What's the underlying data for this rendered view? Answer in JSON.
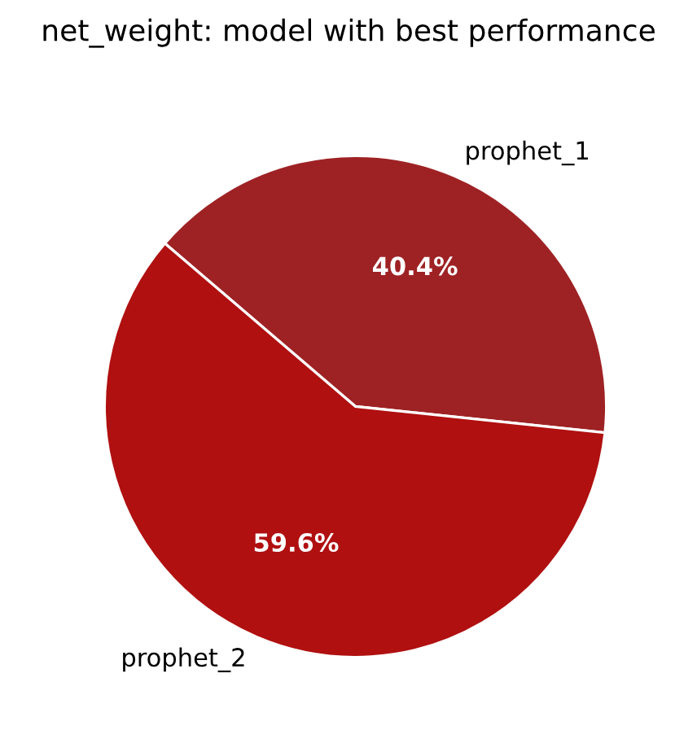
{
  "chart_data": {
    "type": "pie",
    "title": "net_weight: model with best performance",
    "categories": [
      "prophet_1",
      "prophet_2"
    ],
    "values": [
      40.4,
      59.6
    ],
    "colors": [
      "#9e2224",
      "#b01010"
    ],
    "value_labels": [
      "40.4%",
      "59.6%"
    ]
  }
}
